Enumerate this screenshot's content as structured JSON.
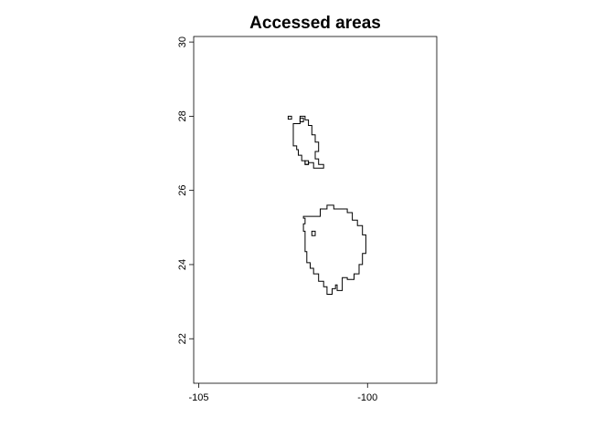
{
  "chart_data": {
    "type": "map",
    "title": "Accessed areas",
    "xlabel": "",
    "ylabel": "",
    "xlim": [
      -105.15,
      -97.95
    ],
    "ylim": [
      20.8,
      30.15
    ],
    "x_ticks": [
      -105,
      -100
    ],
    "x_tick_labels": [
      "-105",
      "-100"
    ],
    "y_ticks": [
      22,
      24,
      26,
      28,
      30
    ],
    "y_tick_labels": [
      "22",
      "24",
      "26",
      "28",
      "30"
    ],
    "grid": false,
    "line_color": "#000000",
    "regions": [
      {
        "id": "north-area",
        "outline": [
          [
            -102.2,
            27.2
          ],
          [
            -102.2,
            27.8
          ],
          [
            -102.0,
            27.8
          ],
          [
            -102.0,
            28.0
          ],
          [
            -101.85,
            28.0
          ],
          [
            -101.85,
            27.9
          ],
          [
            -101.75,
            27.9
          ],
          [
            -101.75,
            27.75
          ],
          [
            -101.65,
            27.75
          ],
          [
            -101.65,
            27.5
          ],
          [
            -101.55,
            27.5
          ],
          [
            -101.55,
            27.3
          ],
          [
            -101.45,
            27.3
          ],
          [
            -101.45,
            27.05
          ],
          [
            -101.55,
            27.05
          ],
          [
            -101.55,
            26.85
          ],
          [
            -101.45,
            26.85
          ],
          [
            -101.45,
            26.7
          ],
          [
            -101.3,
            26.7
          ],
          [
            -101.3,
            26.6
          ],
          [
            -101.6,
            26.6
          ],
          [
            -101.6,
            26.75
          ],
          [
            -101.75,
            26.75
          ],
          [
            -101.75,
            26.7
          ],
          [
            -101.85,
            26.7
          ],
          [
            -101.85,
            26.8
          ],
          [
            -101.95,
            26.8
          ],
          [
            -101.95,
            26.95
          ],
          [
            -102.05,
            26.95
          ],
          [
            -102.05,
            27.1
          ],
          [
            -102.1,
            27.1
          ],
          [
            -102.1,
            27.2
          ]
        ],
        "holes": [
          [
            [
              -101.85,
              26.8
            ],
            [
              -101.75,
              26.8
            ],
            [
              -101.75,
              26.7
            ],
            [
              -101.85,
              26.7
            ]
          ]
        ],
        "islands": [
          [
            [
              -102.35,
              28.0
            ],
            [
              -102.25,
              28.0
            ],
            [
              -102.25,
              27.92
            ],
            [
              -102.35,
              27.92
            ]
          ],
          [
            [
              -102.0,
              27.95
            ],
            [
              -101.9,
              27.95
            ],
            [
              -101.9,
              27.85
            ],
            [
              -102.0,
              27.85
            ]
          ]
        ]
      },
      {
        "id": "south-area",
        "outline": [
          [
            -101.9,
            25.3
          ],
          [
            -101.4,
            25.3
          ],
          [
            -101.4,
            25.5
          ],
          [
            -101.2,
            25.5
          ],
          [
            -101.2,
            25.6
          ],
          [
            -101.0,
            25.6
          ],
          [
            -101.0,
            25.5
          ],
          [
            -100.6,
            25.5
          ],
          [
            -100.6,
            25.4
          ],
          [
            -100.45,
            25.4
          ],
          [
            -100.45,
            25.2
          ],
          [
            -100.3,
            25.2
          ],
          [
            -100.3,
            25.05
          ],
          [
            -100.15,
            25.05
          ],
          [
            -100.15,
            24.8
          ],
          [
            -100.05,
            24.8
          ],
          [
            -100.05,
            24.3
          ],
          [
            -100.15,
            24.3
          ],
          [
            -100.15,
            24.0
          ],
          [
            -100.25,
            24.0
          ],
          [
            -100.25,
            23.75
          ],
          [
            -100.4,
            23.75
          ],
          [
            -100.4,
            23.6
          ],
          [
            -100.6,
            23.6
          ],
          [
            -100.6,
            23.65
          ],
          [
            -100.75,
            23.65
          ],
          [
            -100.75,
            23.3
          ],
          [
            -100.9,
            23.3
          ],
          [
            -100.9,
            23.45
          ],
          [
            -100.95,
            23.45
          ],
          [
            -100.95,
            23.35
          ],
          [
            -101.05,
            23.35
          ],
          [
            -101.05,
            23.2
          ],
          [
            -101.2,
            23.2
          ],
          [
            -101.2,
            23.4
          ],
          [
            -101.3,
            23.4
          ],
          [
            -101.3,
            23.55
          ],
          [
            -101.45,
            23.55
          ],
          [
            -101.45,
            23.75
          ],
          [
            -101.6,
            23.75
          ],
          [
            -101.6,
            23.9
          ],
          [
            -101.7,
            23.9
          ],
          [
            -101.7,
            24.05
          ],
          [
            -101.8,
            24.05
          ],
          [
            -101.8,
            24.35
          ],
          [
            -101.85,
            24.35
          ],
          [
            -101.85,
            24.9
          ],
          [
            -101.9,
            24.9
          ],
          [
            -101.9,
            25.1
          ],
          [
            -101.85,
            25.1
          ],
          [
            -101.85,
            25.25
          ],
          [
            -101.9,
            25.25
          ]
        ],
        "holes": [],
        "islands": [
          [
            [
              -101.65,
              24.9
            ],
            [
              -101.55,
              24.9
            ],
            [
              -101.55,
              24.78
            ],
            [
              -101.65,
              24.78
            ]
          ]
        ]
      }
    ]
  }
}
